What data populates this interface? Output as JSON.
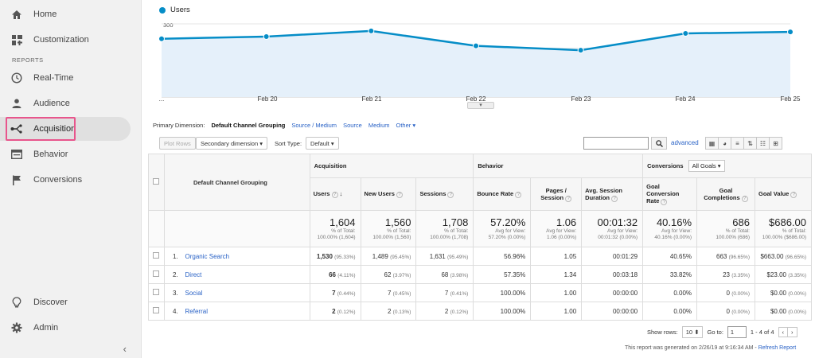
{
  "sidebar": {
    "top_items": [
      {
        "label": "Home",
        "icon": "home-icon"
      },
      {
        "label": "Customization",
        "icon": "dashboard-icon"
      }
    ],
    "section_label": "REPORTS",
    "report_items": [
      {
        "label": "Real-Time",
        "icon": "clock-icon"
      },
      {
        "label": "Audience",
        "icon": "person-icon"
      },
      {
        "label": "Acquisition",
        "icon": "acquisition-icon"
      },
      {
        "label": "Behavior",
        "icon": "window-icon"
      },
      {
        "label": "Conversions",
        "icon": "flag-icon"
      }
    ],
    "bottom_items": [
      {
        "label": "Discover",
        "icon": "lightbulb-icon"
      },
      {
        "label": "Admin",
        "icon": "gear-icon"
      }
    ],
    "collapse_glyph": "‹"
  },
  "chart_data": {
    "type": "area",
    "series": [
      {
        "name": "Users",
        "values": [
          239,
          248,
          271,
          210,
          192,
          261,
          267
        ]
      }
    ],
    "x": [
      "",
      "Feb 20",
      "Feb 21",
      "Feb 22",
      "Feb 23",
      "Feb 24",
      "Feb 25"
    ],
    "x_tick_labels": [
      "...",
      "Feb 20",
      "Feb 21",
      "Feb 22",
      "Feb 23",
      "Feb 24",
      "Feb 25"
    ],
    "y_ticks": [
      "300",
      "200",
      "100"
    ],
    "ylim": [
      0,
      300
    ],
    "color": "#058dc7",
    "fill": "#e5f0fa"
  },
  "primary_dimension": {
    "label": "Primary Dimension:",
    "selected": "Default Channel Grouping",
    "options": [
      "Source / Medium",
      "Source",
      "Medium",
      "Other ▾"
    ]
  },
  "toolbar": {
    "plot_rows": "Plot Rows",
    "secondary_dimension": "Secondary dimension ▾",
    "sort_type_label": "Sort Type:",
    "sort_type_value": "Default ▾",
    "advanced": "advanced"
  },
  "table": {
    "dimension_header": "Default Channel Grouping",
    "groups": {
      "acquisition": "Acquisition",
      "behavior": "Behavior",
      "conversions": "Conversions",
      "goal_select": "All Goals ▾"
    },
    "columns": [
      "Users",
      "New Users",
      "Sessions",
      "Bounce Rate",
      "Pages / Session",
      "Avg. Session Duration",
      "Goal Conversion Rate",
      "Goal Completions",
      "Goal Value"
    ],
    "totals": [
      {
        "value": "1,604",
        "sub1": "% of Total:",
        "sub2": "100.00% (1,604)"
      },
      {
        "value": "1,560",
        "sub1": "% of Total:",
        "sub2": "100.00% (1,560)"
      },
      {
        "value": "1,708",
        "sub1": "% of Total:",
        "sub2": "100.00% (1,708)"
      },
      {
        "value": "57.20%",
        "sub1": "Avg for View:",
        "sub2": "57.20% (0.00%)"
      },
      {
        "value": "1.06",
        "sub1": "Avg for View:",
        "sub2": "1.06 (0.00%)"
      },
      {
        "value": "00:01:32",
        "sub1": "Avg for View:",
        "sub2": "00:01:32 (0.00%)"
      },
      {
        "value": "40.16%",
        "sub1": "Avg for View:",
        "sub2": "40.16% (0.00%)"
      },
      {
        "value": "686",
        "sub1": "% of Total:",
        "sub2": "100.00% (686)"
      },
      {
        "value": "$686.00",
        "sub1": "% of Total:",
        "sub2": "100.00% ($686.00)"
      }
    ],
    "rows": [
      {
        "idx": "1.",
        "name": "Organic Search",
        "users": "1,530",
        "users_pct": "(95.33%)",
        "new_users": "1,489",
        "new_users_pct": "(95.45%)",
        "sessions": "1,631",
        "sessions_pct": "(95.49%)",
        "bounce": "56.96%",
        "pages": "1.05",
        "duration": "00:01:29",
        "conv_rate": "40.65%",
        "completions": "663",
        "completions_pct": "(96.65%)",
        "value": "$663.00",
        "value_pct": "(96.65%)"
      },
      {
        "idx": "2.",
        "name": "Direct",
        "users": "66",
        "users_pct": "(4.11%)",
        "new_users": "62",
        "new_users_pct": "(3.97%)",
        "sessions": "68",
        "sessions_pct": "(3.98%)",
        "bounce": "57.35%",
        "pages": "1.34",
        "duration": "00:03:18",
        "conv_rate": "33.82%",
        "completions": "23",
        "completions_pct": "(3.35%)",
        "value": "$23.00",
        "value_pct": "(3.35%)"
      },
      {
        "idx": "3.",
        "name": "Social",
        "users": "7",
        "users_pct": "(0.44%)",
        "new_users": "7",
        "new_users_pct": "(0.45%)",
        "sessions": "7",
        "sessions_pct": "(0.41%)",
        "bounce": "100.00%",
        "pages": "1.00",
        "duration": "00:00:00",
        "conv_rate": "0.00%",
        "completions": "0",
        "completions_pct": "(0.00%)",
        "value": "$0.00",
        "value_pct": "(0.00%)"
      },
      {
        "idx": "4.",
        "name": "Referral",
        "users": "2",
        "users_pct": "(0.12%)",
        "new_users": "2",
        "new_users_pct": "(0.13%)",
        "sessions": "2",
        "sessions_pct": "(0.12%)",
        "bounce": "100.00%",
        "pages": "1.00",
        "duration": "00:00:00",
        "conv_rate": "0.00%",
        "completions": "0",
        "completions_pct": "(0.00%)",
        "value": "$0.00",
        "value_pct": "(0.00%)"
      }
    ]
  },
  "footer": {
    "show_rows_label": "Show rows:",
    "show_rows_value": "10 ⬍",
    "goto_label": "Go to:",
    "goto_value": "1",
    "range": "1 - 4 of 4",
    "generated": "This report was generated on 2/26/19 at 9:16:34 AM - ",
    "refresh": "Refresh Report"
  }
}
